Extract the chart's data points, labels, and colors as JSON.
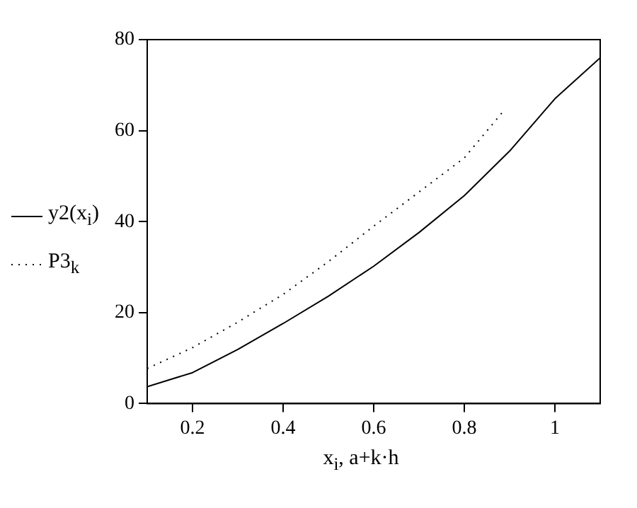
{
  "chart_data": {
    "type": "line",
    "xlabel": "x$_{i}$, a+k·h",
    "xlim": [
      0.1,
      1.1
    ],
    "xticks": [
      0.2,
      0.4,
      0.6,
      0.8,
      1
    ],
    "ylim": [
      0,
      80
    ],
    "yticks": [
      0,
      20,
      40,
      60,
      80
    ],
    "grid": false,
    "legend": "left",
    "marker": "none",
    "series": [
      {
        "name": "y2(x$_{i}$)",
        "color": "#000000",
        "line_style": "solid",
        "x": [
          0.1,
          0.2,
          0.3,
          0.4,
          0.5,
          0.6,
          0.7,
          0.8,
          0.9,
          1.0,
          1.1
        ],
        "values": [
          3.7,
          6.8,
          11.9,
          17.6,
          23.6,
          30.2,
          37.6,
          45.7,
          55.5,
          67,
          76
        ]
      },
      {
        "name": "P3$_{k}$",
        "color": "#000000",
        "line_style": "dotted",
        "x": [
          0.1,
          0.2,
          0.3,
          0.4,
          0.5,
          0.6,
          0.7,
          0.8,
          0.884
        ],
        "values": [
          7.7,
          12.3,
          17.9,
          24,
          31.2,
          39,
          46.5,
          54,
          64
        ]
      }
    ]
  }
}
